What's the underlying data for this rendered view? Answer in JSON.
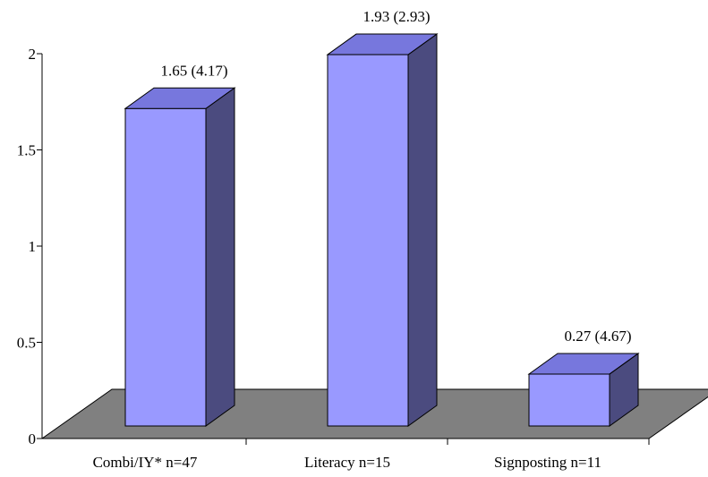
{
  "chart_data": {
    "type": "bar",
    "style": "3d-column",
    "categories": [
      "Combi/IY* n=47",
      "Literacy n=15",
      "Signposting n=11"
    ],
    "values": [
      1.65,
      1.93,
      0.27
    ],
    "data_labels": [
      "1.65 (4.17)",
      "1.93 (2.93)",
      "0.27 (4.67)"
    ],
    "ylim": [
      0,
      2
    ],
    "yticks": [
      0,
      0.5,
      1,
      1.5,
      2
    ],
    "ytick_labels": [
      "0",
      "0.5",
      "1",
      "1.5",
      "2"
    ],
    "title": "",
    "xlabel": "",
    "ylabel": "",
    "grid": false,
    "legend": "none",
    "colors": {
      "bar_front": "#9999ff",
      "bar_top": "#7777dd",
      "bar_side": "#4b4b7f",
      "floor": "#808080",
      "outline": "#000000"
    }
  }
}
